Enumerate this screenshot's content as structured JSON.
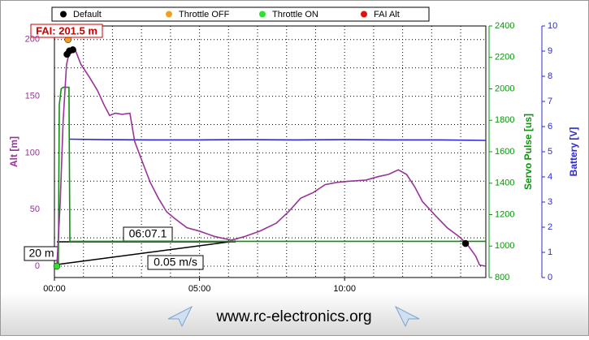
{
  "chart_data": {
    "type": "line",
    "fai_label": "FAI: 201.5 m",
    "annotations": [
      "06:07.1",
      "20 m",
      "0.05 m/s"
    ],
    "footer": "www.rc-electronics.org",
    "y_label": "Alt [m]",
    "y2_label": "Servo Pulse [us]",
    "y3_label": "Battery [V]",
    "xlim": [
      0,
      892
    ],
    "xticks": [
      {
        "value": 0,
        "label": "00:00"
      },
      {
        "value": 300,
        "label": "05:00"
      },
      {
        "value": 600,
        "label": "10:00"
      }
    ],
    "xminor": [
      60,
      120,
      180,
      240,
      360,
      420,
      480,
      540,
      660,
      720,
      780,
      840
    ],
    "ylim": [
      -10,
      212
    ],
    "yticks": [
      0,
      50,
      100,
      150,
      200
    ],
    "yminor": [
      25,
      75,
      125,
      175
    ],
    "y2lim": [
      800,
      2400
    ],
    "y2ticks": [
      800,
      1000,
      1200,
      1400,
      1600,
      1800,
      2000,
      2200,
      2400
    ],
    "y3lim": [
      0,
      10
    ],
    "y3ticks": [
      0,
      1,
      2,
      3,
      4,
      5,
      6,
      7,
      8,
      9,
      10
    ],
    "grid": true,
    "series": [
      {
        "name": "Alt",
        "color": "#993399",
        "axis": "y",
        "x": [
          0,
          5,
          12,
          18,
          25,
          32,
          42,
          55,
          72,
          89,
          103,
          114,
          126,
          140,
          156,
          166,
          182,
          198,
          215,
          232,
          249,
          274,
          299,
          333,
          366,
          392,
          425,
          459,
          484,
          509,
          535,
          560,
          585,
          610,
          644,
          669,
          691,
          711,
          728,
          745,
          761,
          787,
          812,
          837,
          854,
          871,
          879,
          892
        ],
        "values": [
          0,
          0,
          56,
          128,
          178,
          191,
          192,
          178,
          167,
          155,
          142,
          133,
          135,
          134,
          135,
          110,
          92,
          74,
          60,
          48,
          42,
          34,
          31,
          26,
          23,
          26,
          31,
          38,
          48,
          60,
          65,
          72,
          74,
          75,
          76,
          79,
          81,
          85,
          81,
          70,
          57,
          45,
          34,
          26,
          19,
          9,
          1,
          0
        ]
      },
      {
        "name": "Servo Pulse",
        "color": "#109010",
        "axis": "y2",
        "x": [
          0,
          8,
          10,
          14,
          18,
          30,
          32,
          892
        ],
        "values": [
          880,
          880,
          1900,
          2000,
          2010,
          2010,
          1030,
          1030
        ]
      },
      {
        "name": "Battery",
        "color": "#2a2ad0",
        "axis": "y3",
        "x": [
          32,
          100,
          200,
          300,
          400,
          500,
          600,
          700,
          800,
          892
        ],
        "values": [
          5.5,
          5.48,
          5.47,
          5.47,
          5.48,
          5.47,
          5.48,
          5.47,
          5.47,
          5.45
        ]
      }
    ],
    "marker_groups": [
      {
        "name": "Default",
        "color": "#000000",
        "x": [
          26,
          31,
          38,
          850
        ],
        "y": [
          187,
          190,
          191,
          20
        ]
      },
      {
        "name": "Throttle OFF",
        "color": "#f0a020",
        "x": [
          28
        ],
        "y": [
          200
        ]
      },
      {
        "name": "Throttle ON",
        "color": "#30e030",
        "x": [
          5
        ],
        "y": [
          0
        ]
      },
      {
        "name": "FAI Alt",
        "color": "#e01010",
        "x": [],
        "y": []
      }
    ]
  }
}
